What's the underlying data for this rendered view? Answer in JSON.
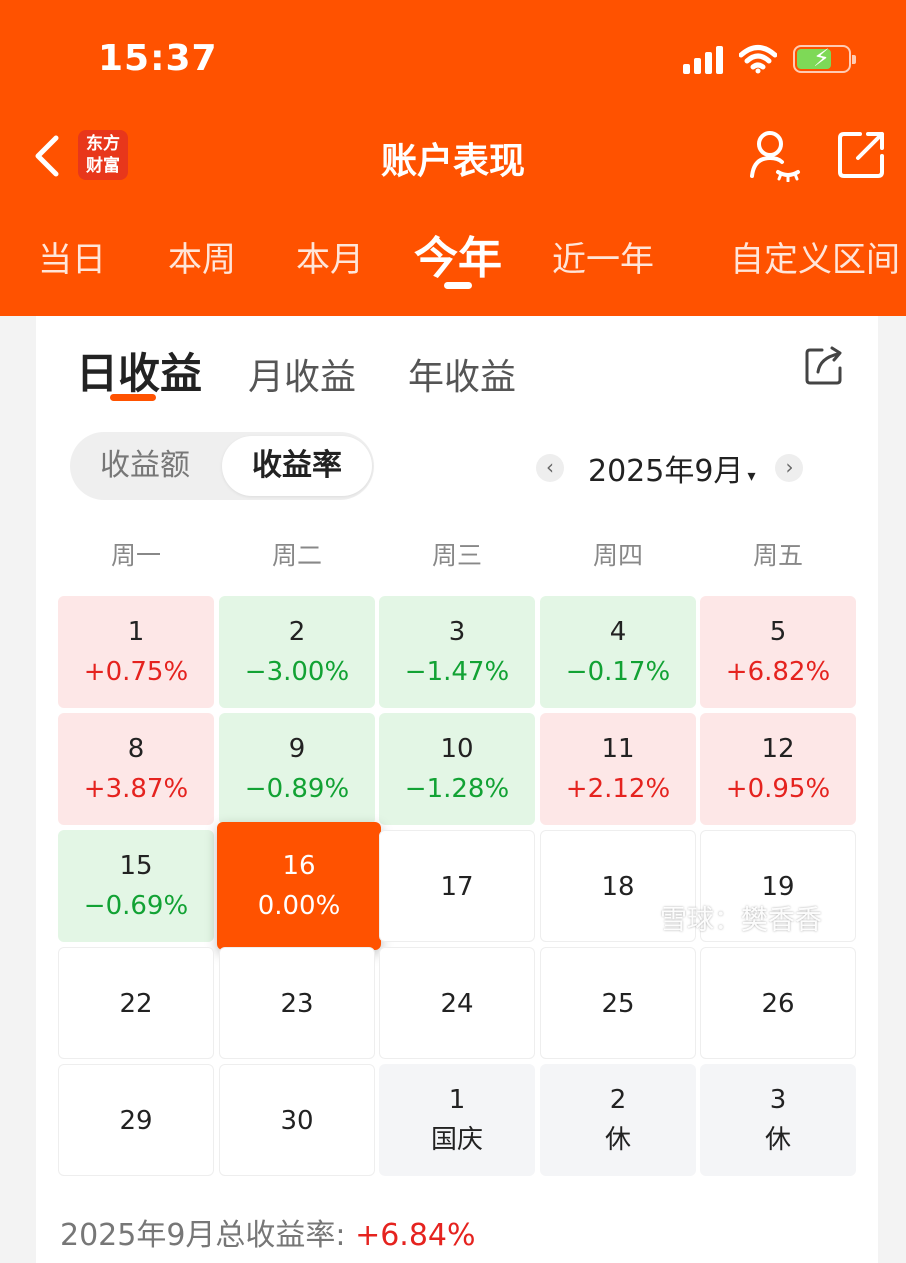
{
  "status_bar": {
    "time": "15:37"
  },
  "header": {
    "title": "账户表现",
    "brand_logo_text": "东方财富",
    "brand_line1": "东方",
    "brand_line2": "财富"
  },
  "period_tabs": [
    {
      "label": "当日"
    },
    {
      "label": "本周"
    },
    {
      "label": "本月"
    },
    {
      "label": "今年",
      "active": true
    },
    {
      "label": "近一年"
    },
    {
      "label": "自定义区间"
    }
  ],
  "sub_tabs": [
    {
      "label": "日收益",
      "active": true
    },
    {
      "label": "月收益"
    },
    {
      "label": "年收益"
    }
  ],
  "segment": {
    "options": [
      "收益额",
      "收益率"
    ],
    "selected": "收益率"
  },
  "month_nav": {
    "label": "2025年9月",
    "prev": "‹",
    "next": "›",
    "caret": "▾"
  },
  "weekdays": [
    "周一",
    "周二",
    "周三",
    "周四",
    "周五"
  ],
  "calendar": [
    [
      {
        "day": "1",
        "value": "+0.75%",
        "tone": "red"
      },
      {
        "day": "2",
        "value": "−3.00%",
        "tone": "green"
      },
      {
        "day": "3",
        "value": "−1.47%",
        "tone": "green"
      },
      {
        "day": "4",
        "value": "−0.17%",
        "tone": "green"
      },
      {
        "day": "5",
        "value": "+6.82%",
        "tone": "red"
      }
    ],
    [
      {
        "day": "8",
        "value": "+3.87%",
        "tone": "red"
      },
      {
        "day": "9",
        "value": "−0.89%",
        "tone": "green"
      },
      {
        "day": "10",
        "value": "−1.28%",
        "tone": "green"
      },
      {
        "day": "11",
        "value": "+2.12%",
        "tone": "red"
      },
      {
        "day": "12",
        "value": "+0.95%",
        "tone": "red"
      }
    ],
    [
      {
        "day": "15",
        "value": "−0.69%",
        "tone": "green"
      },
      {
        "day": "16",
        "value": "0.00%",
        "tone": "today"
      },
      {
        "day": "17",
        "tone": "empty"
      },
      {
        "day": "18",
        "tone": "empty"
      },
      {
        "day": "19",
        "tone": "empty"
      }
    ],
    [
      {
        "day": "22",
        "tone": "empty"
      },
      {
        "day": "23",
        "tone": "empty"
      },
      {
        "day": "24",
        "tone": "empty"
      },
      {
        "day": "25",
        "tone": "empty"
      },
      {
        "day": "26",
        "tone": "empty"
      }
    ],
    [
      {
        "day": "29",
        "tone": "empty"
      },
      {
        "day": "30",
        "tone": "empty"
      },
      {
        "day": "1",
        "value": "国庆",
        "tone": "holiday"
      },
      {
        "day": "2",
        "value": "休",
        "tone": "holiday"
      },
      {
        "day": "3",
        "value": "休",
        "tone": "holiday"
      }
    ]
  ],
  "total": {
    "label": "2025年9月总收益率: ",
    "value": "+6.84%"
  },
  "watermark": "雪球：樊香香",
  "colors": {
    "accent": "#ff5200",
    "gain": "#e5231f",
    "loss": "#12a234"
  },
  "icons": [
    "back-icon",
    "user-icon",
    "share-icon",
    "export-icon",
    "signal-icon",
    "wifi-icon",
    "battery-icon"
  ]
}
